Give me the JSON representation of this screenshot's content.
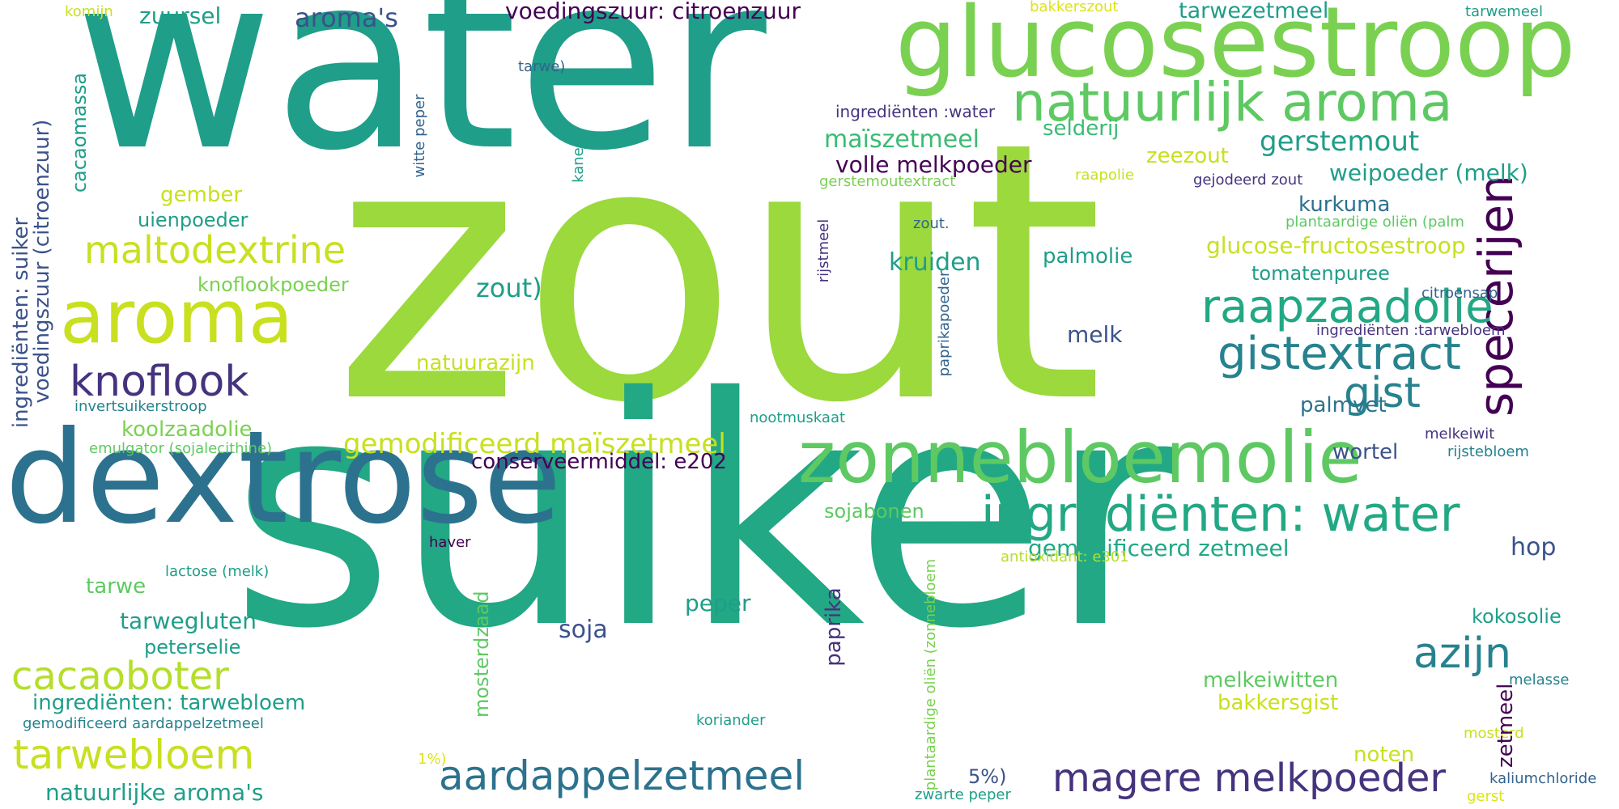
{
  "words": [
    {
      "text": "zout",
      "color": "#9bd93c"
    },
    {
      "text": "suiker",
      "color": "#22a884"
    },
    {
      "text": "water",
      "color": "#1f9e89"
    },
    {
      "text": "dextrose",
      "color": "#2c728e"
    },
    {
      "text": "glucosestroop",
      "color": "#7ad151"
    },
    {
      "text": "aroma",
      "color": "#c8e020"
    },
    {
      "text": "zonnebloemolie",
      "color": "#5ec962"
    },
    {
      "text": "natuurlijk aroma",
      "color": "#5ec962"
    },
    {
      "text": "ingrediënten: water",
      "color": "#22a884"
    },
    {
      "text": "specerijen",
      "color": "#440154"
    },
    {
      "text": "raapzaadolie",
      "color": "#22a884"
    },
    {
      "text": "gistextract",
      "color": "#26828e"
    },
    {
      "text": "maltodextrine",
      "color": "#c8e020"
    },
    {
      "text": "knoflook",
      "color": "#46337e"
    },
    {
      "text": "aardappelzetmeel",
      "color": "#2c728e"
    },
    {
      "text": "magere melkpoeder",
      "color": "#46337e"
    },
    {
      "text": "cacaoboter",
      "color": "#b5de2b"
    },
    {
      "text": "tarwebloem",
      "color": "#c8e020"
    },
    {
      "text": "gist",
      "color": "#26828e"
    },
    {
      "text": "azijn",
      "color": "#26828e"
    },
    {
      "text": "aroma's",
      "color": "#3b528b"
    },
    {
      "text": "voedingszuur: citroenzuur",
      "color": "#440154"
    },
    {
      "text": "tarwezetmeel",
      "color": "#1f9e89"
    },
    {
      "text": "zuursel",
      "color": "#1f9e89"
    },
    {
      "text": "komijn",
      "color": "#c8e020"
    },
    {
      "text": "bakkerszout",
      "color": "#dde318"
    },
    {
      "text": "tarwemeel",
      "color": "#1f9e89"
    },
    {
      "text": "tarwe)",
      "color": "#33638d"
    },
    {
      "text": "ingrediënten :water",
      "color": "#46337e"
    },
    {
      "text": "gerstemout",
      "color": "#1f9e89"
    },
    {
      "text": "maïszetmeel",
      "color": "#3bbb75"
    },
    {
      "text": "selderij",
      "color": "#3bbb75"
    },
    {
      "text": "volle melkpoeder",
      "color": "#440154"
    },
    {
      "text": "zeezout",
      "color": "#c8e020"
    },
    {
      "text": "weipoeder (melk)",
      "color": "#1f9e89"
    },
    {
      "text": "gerstemoutextract",
      "color": "#7ad151"
    },
    {
      "text": "raapolie",
      "color": "#c8e020"
    },
    {
      "text": "gejodeerd zout",
      "color": "#46337e"
    },
    {
      "text": "gember",
      "color": "#c8e020"
    },
    {
      "text": "uienpoeder",
      "color": "#1f9e89"
    },
    {
      "text": "kurkuma",
      "color": "#2c728e"
    },
    {
      "text": "zout.",
      "color": "#33638d"
    },
    {
      "text": "plantaardige oliën (palm",
      "color": "#5ec962"
    },
    {
      "text": "glucose-fructosestroop",
      "color": "#c8e020"
    },
    {
      "text": "kruiden",
      "color": "#1f9e89"
    },
    {
      "text": "palmolie",
      "color": "#1f9e89"
    },
    {
      "text": "tomatenpuree",
      "color": "#1f9e89"
    },
    {
      "text": "citroensap",
      "color": "#33638d"
    },
    {
      "text": "knoflookpoeder",
      "color": "#7ad151"
    },
    {
      "text": "zout)",
      "color": "#1f9e89"
    },
    {
      "text": "melk",
      "color": "#3b528b"
    },
    {
      "text": "ingrediënten :tarwebloem",
      "color": "#46337e"
    },
    {
      "text": "natuurazijn",
      "color": "#c8e020"
    },
    {
      "text": "palmvet",
      "color": "#2c728e"
    },
    {
      "text": "invertsuikerstroop",
      "color": "#26828e"
    },
    {
      "text": "koolzaadolie",
      "color": "#7ad151"
    },
    {
      "text": "nootmuskaat",
      "color": "#1f9e89"
    },
    {
      "text": "melkeiwit",
      "color": "#46337e"
    },
    {
      "text": "emulgator (sojalecithine)",
      "color": "#5ec962"
    },
    {
      "text": "gemodificeerd maïszetmeel",
      "color": "#c8e020"
    },
    {
      "text": "conserveermiddel: e202",
      "color": "#440154"
    },
    {
      "text": "wortel",
      "color": "#3b528b"
    },
    {
      "text": "rijstebloem",
      "color": "#26828e"
    },
    {
      "text": "sojabonen",
      "color": "#5ec962"
    },
    {
      "text": "haver",
      "color": "#440154"
    },
    {
      "text": "gemodificeerd zetmeel",
      "color": "#22a884"
    },
    {
      "text": "hop",
      "color": "#3b528b"
    },
    {
      "text": "antioxidant: e301",
      "color": "#b5de2b"
    },
    {
      "text": "lactose (melk)",
      "color": "#1f9e89"
    },
    {
      "text": "tarwe",
      "color": "#5ec962"
    },
    {
      "text": "peper",
      "color": "#1f9e89"
    },
    {
      "text": "tarwegluten",
      "color": "#1f9e89"
    },
    {
      "text": "peterselie",
      "color": "#1f9e89"
    },
    {
      "text": "soja",
      "color": "#3b528b"
    },
    {
      "text": "kokosolie",
      "color": "#1f9e89"
    },
    {
      "text": "ingrediënten: tarwebloem",
      "color": "#1f9e89"
    },
    {
      "text": "melkeiwitten",
      "color": "#5ec962"
    },
    {
      "text": "bakkersgist",
      "color": "#c8e020"
    },
    {
      "text": "melasse",
      "color": "#26828e"
    },
    {
      "text": "gemodificeerd aardappelzetmeel",
      "color": "#26828e"
    },
    {
      "text": "koriander",
      "color": "#1f9e89"
    },
    {
      "text": "mosterd",
      "color": "#c8e020"
    },
    {
      "text": "1%)",
      "color": "#dde318"
    },
    {
      "text": "noten",
      "color": "#c8e020"
    },
    {
      "text": "5%)",
      "color": "#3b528b"
    },
    {
      "text": "kaliumchloride",
      "color": "#33638d"
    },
    {
      "text": "natuurlijke aroma's",
      "color": "#1f9e89"
    },
    {
      "text": "zwarte peper",
      "color": "#1f9e89"
    },
    {
      "text": "gerst",
      "color": "#dde318"
    },
    {
      "text": "ingrediënten: suiker",
      "color": "#3b528b"
    },
    {
      "text": "voedingszuur (citroenzuur)",
      "color": "#3b528b"
    },
    {
      "text": "cacaomassa",
      "color": "#1f9e89"
    },
    {
      "text": "witte peper",
      "color": "#33638d"
    },
    {
      "text": "kaneel",
      "color": "#1f9e89"
    },
    {
      "text": "rijstmeel",
      "color": "#46337e"
    },
    {
      "text": "paprikapoeder",
      "color": "#33638d"
    },
    {
      "text": "mosterdzaad",
      "color": "#5ec962"
    },
    {
      "text": "paprika",
      "color": "#46337e"
    },
    {
      "text": "zetmeel",
      "color": "#440154"
    },
    {
      "text": "plantaardige oliën (zonnebloem",
      "color": "#7ad151"
    }
  ]
}
